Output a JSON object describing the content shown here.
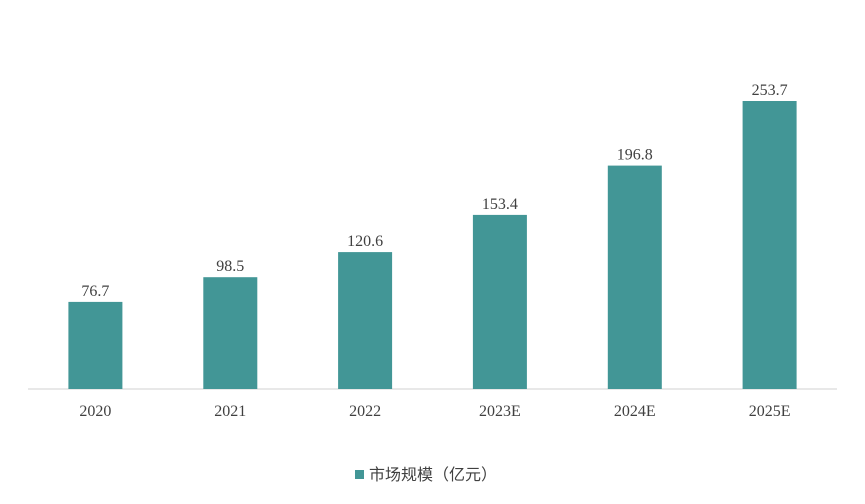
{
  "chart_data": {
    "type": "bar",
    "categories": [
      "2020",
      "2021",
      "2022",
      "2023E",
      "2024E",
      "2025E"
    ],
    "series": [
      {
        "name": "市场规模（亿元）",
        "values": [
          76.7,
          98.5,
          120.6,
          153.4,
          196.8,
          253.7
        ],
        "labels": [
          "76.7",
          "98.5",
          "120.6",
          "153.4",
          "196.8",
          "253.7"
        ]
      }
    ],
    "title": "",
    "xlabel": "",
    "ylabel": "",
    "ylim": [
      0,
      253.7
    ],
    "grid": false,
    "legend_position": "bottom",
    "colors": {
      "bar": "#429696",
      "axis": "#d9d9d9",
      "text": "#404040"
    }
  }
}
